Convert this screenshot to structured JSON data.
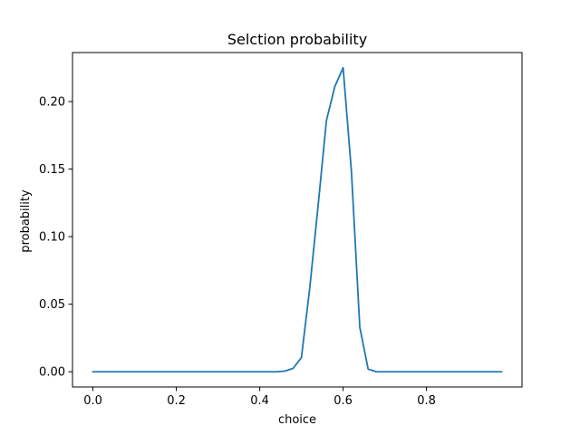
{
  "chart_data": {
    "type": "line",
    "title": "Selction probability",
    "xlabel": "choice",
    "ylabel": "probability",
    "xlim": [
      -0.049,
      1.029
    ],
    "ylim": [
      -0.01125,
      0.23625
    ],
    "xticks": [
      0.0,
      0.2,
      0.4,
      0.6,
      0.8
    ],
    "xtick_labels": [
      "0.0",
      "0.2",
      "0.4",
      "0.6",
      "0.8"
    ],
    "yticks": [
      0.0,
      0.05,
      0.1,
      0.15,
      0.2
    ],
    "ytick_labels": [
      "0.00",
      "0.05",
      "0.10",
      "0.15",
      "0.20"
    ],
    "grid": false,
    "series": [
      {
        "color": "#1f77b4",
        "x": [
          0.0,
          0.02,
          0.04,
          0.06,
          0.08,
          0.1,
          0.12,
          0.14,
          0.16,
          0.18,
          0.2,
          0.22,
          0.24,
          0.26,
          0.28,
          0.3,
          0.32,
          0.34,
          0.36,
          0.38,
          0.4,
          0.42,
          0.44,
          0.46,
          0.48,
          0.5,
          0.52,
          0.54,
          0.56,
          0.58,
          0.6,
          0.62,
          0.64,
          0.66,
          0.68,
          0.7,
          0.72,
          0.74,
          0.76,
          0.78,
          0.8,
          0.82,
          0.84,
          0.86,
          0.88,
          0.9,
          0.92,
          0.94,
          0.96,
          0.98
        ],
        "y": [
          0,
          0,
          0,
          0,
          0,
          0,
          0,
          0,
          0,
          0,
          0,
          0,
          0,
          0,
          0,
          0,
          0,
          0,
          0,
          0,
          0,
          0,
          0,
          0.0005,
          0.0025,
          0.0105,
          0.062,
          0.123,
          0.186,
          0.211,
          0.225,
          0.148,
          0.033,
          0.002,
          0,
          0,
          0,
          0,
          0,
          0,
          0,
          0,
          0,
          0,
          0,
          0,
          0,
          0,
          0,
          0
        ]
      }
    ]
  }
}
